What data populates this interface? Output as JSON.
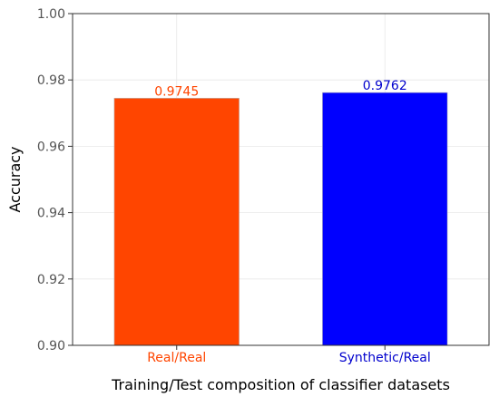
{
  "chart_data": {
    "type": "bar",
    "title": "",
    "xlabel": "Training/Test composition of classifier datasets",
    "ylabel": "Accuracy",
    "ylim": [
      0.9,
      1.0
    ],
    "yticks": [
      0.9,
      0.92,
      0.94,
      0.96,
      0.98,
      1.0
    ],
    "ytick_labels": [
      "0.90",
      "0.92",
      "0.94",
      "0.96",
      "0.98",
      "1.00"
    ],
    "grid": true,
    "categories": [
      "Real/Real",
      "Synthetic/Real"
    ],
    "values": [
      0.9745,
      0.9762
    ],
    "value_labels": [
      "0.9745",
      "0.9762"
    ],
    "colors": [
      "#ff4500",
      "#0000ff"
    ],
    "label_colors": [
      "#ff4500",
      "#0000cd"
    ]
  }
}
